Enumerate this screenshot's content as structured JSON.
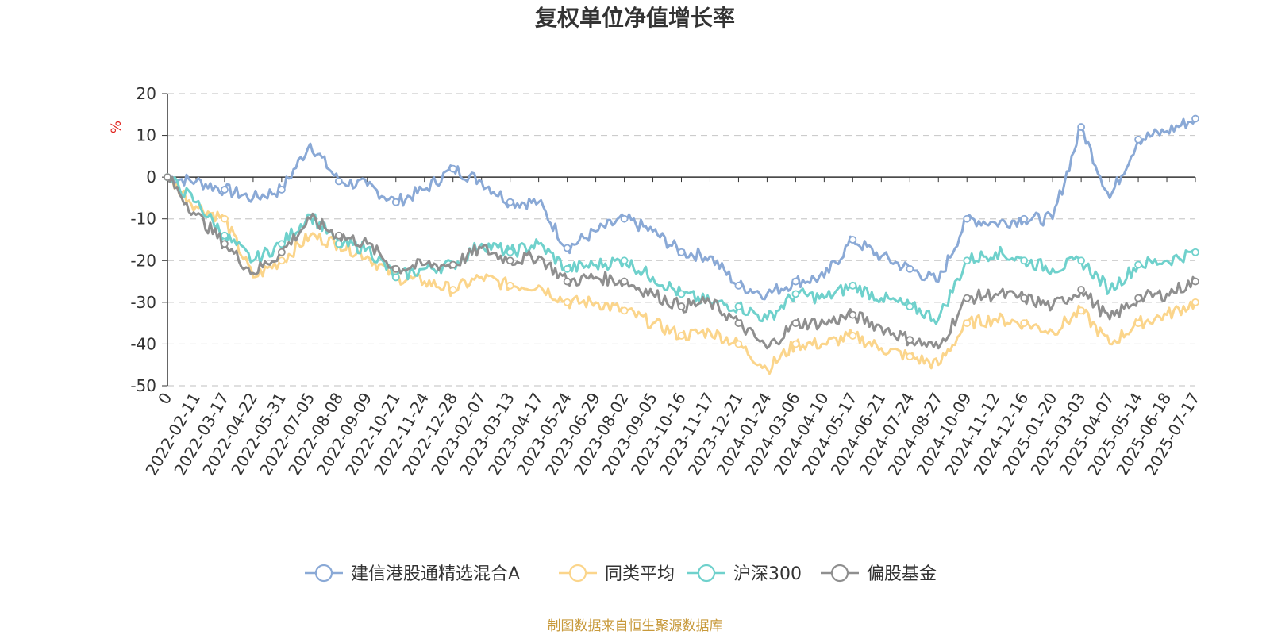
{
  "chart_data": {
    "type": "line",
    "title": "复权单位净值增长率",
    "ylabel": "%",
    "ylim": [
      -50,
      20
    ],
    "yticks": [
      20,
      10,
      0,
      -10,
      -20,
      -30,
      -40,
      -50
    ],
    "grid": true,
    "legend_position": "bottom",
    "source": "制图数据来自恒生聚源数据库",
    "categories": [
      "0",
      "2022-02-11",
      "2022-03-17",
      "2022-04-22",
      "2022-05-31",
      "2022-07-05",
      "2022-08-08",
      "2022-09-09",
      "2022-10-21",
      "2022-11-24",
      "2022-12-28",
      "2023-02-07",
      "2023-03-13",
      "2023-04-17",
      "2023-05-24",
      "2023-06-29",
      "2023-08-02",
      "2023-09-05",
      "2023-10-16",
      "2023-11-17",
      "2023-12-21",
      "2024-01-24",
      "2024-03-06",
      "2024-04-10",
      "2024-05-17",
      "2024-06-21",
      "2024-07-24",
      "2024-08-27",
      "2024-10-09",
      "2024-11-12",
      "2024-12-16",
      "2025-01-20",
      "2025-03-03",
      "2025-04-07",
      "2025-05-14",
      "2025-06-18",
      "2025-07-17"
    ],
    "series": [
      {
        "name": "建信港股通精选混合A",
        "color": "#8aa9d6",
        "values": [
          0,
          -1,
          -3,
          -5,
          -3,
          8,
          -1,
          -2,
          -6,
          -3,
          2,
          -1,
          -6,
          -6,
          -17,
          -13,
          -10,
          -13,
          -18,
          -19,
          -26,
          -28,
          -25,
          -24,
          -15,
          -19,
          -22,
          -25,
          -10,
          -11,
          -10,
          -10,
          12,
          -5,
          9,
          11,
          14
        ]
      },
      {
        "name": "同类平均",
        "color": "#fbd58b",
        "values": [
          0,
          -7,
          -10,
          -24,
          -20,
          -14,
          -16,
          -19,
          -24,
          -25,
          -27,
          -24,
          -26,
          -26,
          -30,
          -30,
          -32,
          -35,
          -38,
          -37,
          -40,
          -46,
          -40,
          -40,
          -38,
          -41,
          -43,
          -45,
          -35,
          -34,
          -35,
          -37,
          -32,
          -40,
          -35,
          -33,
          -30
        ]
      },
      {
        "name": "沪深300",
        "color": "#6fd1cc",
        "values": [
          0,
          -6,
          -14,
          -20,
          -16,
          -9,
          -16,
          -17,
          -24,
          -22,
          -21,
          -16,
          -18,
          -16,
          -22,
          -21,
          -20,
          -24,
          -28,
          -30,
          -31,
          -34,
          -28,
          -29,
          -26,
          -29,
          -31,
          -34,
          -20,
          -18,
          -20,
          -22,
          -20,
          -27,
          -21,
          -20,
          -18
        ]
      },
      {
        "name": "偏股基金",
        "color": "#8f8f8f",
        "values": [
          0,
          -9,
          -16,
          -23,
          -18,
          -10,
          -14,
          -16,
          -22,
          -21,
          -21,
          -17,
          -20,
          -19,
          -25,
          -24,
          -25,
          -28,
          -31,
          -30,
          -35,
          -41,
          -35,
          -35,
          -33,
          -36,
          -39,
          -41,
          -29,
          -28,
          -29,
          -31,
          -27,
          -34,
          -29,
          -28,
          -25
        ]
      }
    ]
  }
}
